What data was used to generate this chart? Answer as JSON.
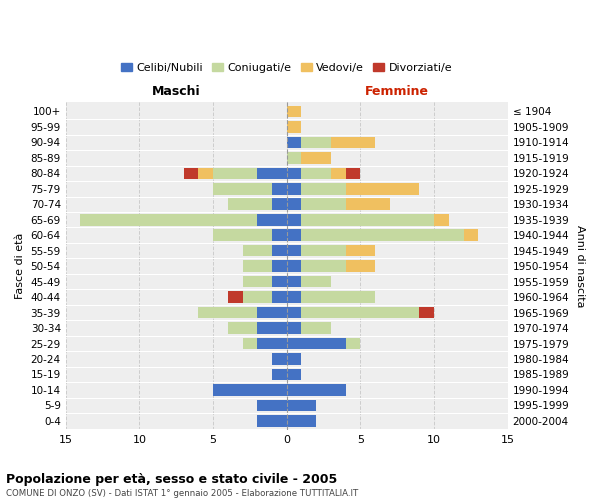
{
  "age_groups": [
    "0-4",
    "5-9",
    "10-14",
    "15-19",
    "20-24",
    "25-29",
    "30-34",
    "35-39",
    "40-44",
    "45-49",
    "50-54",
    "55-59",
    "60-64",
    "65-69",
    "70-74",
    "75-79",
    "80-84",
    "85-89",
    "90-94",
    "95-99",
    "100+"
  ],
  "birth_years": [
    "2000-2004",
    "1995-1999",
    "1990-1994",
    "1985-1989",
    "1980-1984",
    "1975-1979",
    "1970-1974",
    "1965-1969",
    "1960-1964",
    "1955-1959",
    "1950-1954",
    "1945-1949",
    "1940-1944",
    "1935-1939",
    "1930-1934",
    "1925-1929",
    "1920-1924",
    "1915-1919",
    "1910-1914",
    "1905-1909",
    "≤ 1904"
  ],
  "colors": {
    "celibi": "#4472c4",
    "coniugati": "#c5d9a0",
    "vedovi": "#f0c060",
    "divorziati": "#c0392b"
  },
  "maschi": {
    "celibi": [
      2,
      2,
      5,
      1,
      1,
      2,
      2,
      2,
      1,
      1,
      1,
      1,
      1,
      2,
      1,
      1,
      2,
      0,
      0,
      0,
      0
    ],
    "coniugati": [
      0,
      0,
      0,
      0,
      0,
      1,
      2,
      4,
      2,
      2,
      2,
      2,
      4,
      12,
      3,
      4,
      3,
      0,
      0,
      0,
      0
    ],
    "vedovi": [
      0,
      0,
      0,
      0,
      0,
      0,
      0,
      0,
      0,
      0,
      0,
      0,
      0,
      0,
      0,
      0,
      1,
      0,
      0,
      0,
      0
    ],
    "divorziati": [
      0,
      0,
      0,
      0,
      0,
      0,
      0,
      0,
      1,
      0,
      0,
      0,
      0,
      0,
      0,
      0,
      1,
      0,
      0,
      0,
      0
    ]
  },
  "femmine": {
    "celibi": [
      2,
      2,
      4,
      1,
      1,
      4,
      1,
      1,
      1,
      1,
      1,
      1,
      1,
      1,
      1,
      1,
      1,
      0,
      1,
      0,
      0
    ],
    "coniugati": [
      0,
      0,
      0,
      0,
      0,
      1,
      2,
      8,
      5,
      2,
      3,
      3,
      11,
      9,
      3,
      3,
      2,
      1,
      2,
      0,
      0
    ],
    "vedovi": [
      0,
      0,
      0,
      0,
      0,
      0,
      0,
      0,
      0,
      0,
      2,
      2,
      1,
      1,
      3,
      5,
      1,
      2,
      3,
      1,
      1
    ],
    "divorziati": [
      0,
      0,
      0,
      0,
      0,
      0,
      0,
      1,
      0,
      0,
      0,
      0,
      0,
      0,
      0,
      0,
      1,
      0,
      0,
      0,
      0
    ]
  },
  "xlim": [
    -15,
    15
  ],
  "xticks": [
    -15,
    -10,
    -5,
    0,
    5,
    10,
    15
  ],
  "xticklabels": [
    "15",
    "10",
    "5",
    "0",
    "5",
    "10",
    "15"
  ],
  "title": "Popolazione per età, sesso e stato civile - 2005",
  "subtitle": "COMUNE DI ONZO (SV) - Dati ISTAT 1° gennaio 2005 - Elaborazione TUTTITALIA.IT",
  "ylabel_left": "Fasce di età",
  "ylabel_right": "Anni di nascita",
  "label_maschi": "Maschi",
  "label_femmine": "Femmine",
  "legend_labels": [
    "Celibi/Nubili",
    "Coniugati/e",
    "Vedovi/e",
    "Divorziati/e"
  ],
  "bg_color": "#eeeeee",
  "grid_color": "#cccccc",
  "bar_height": 0.75
}
